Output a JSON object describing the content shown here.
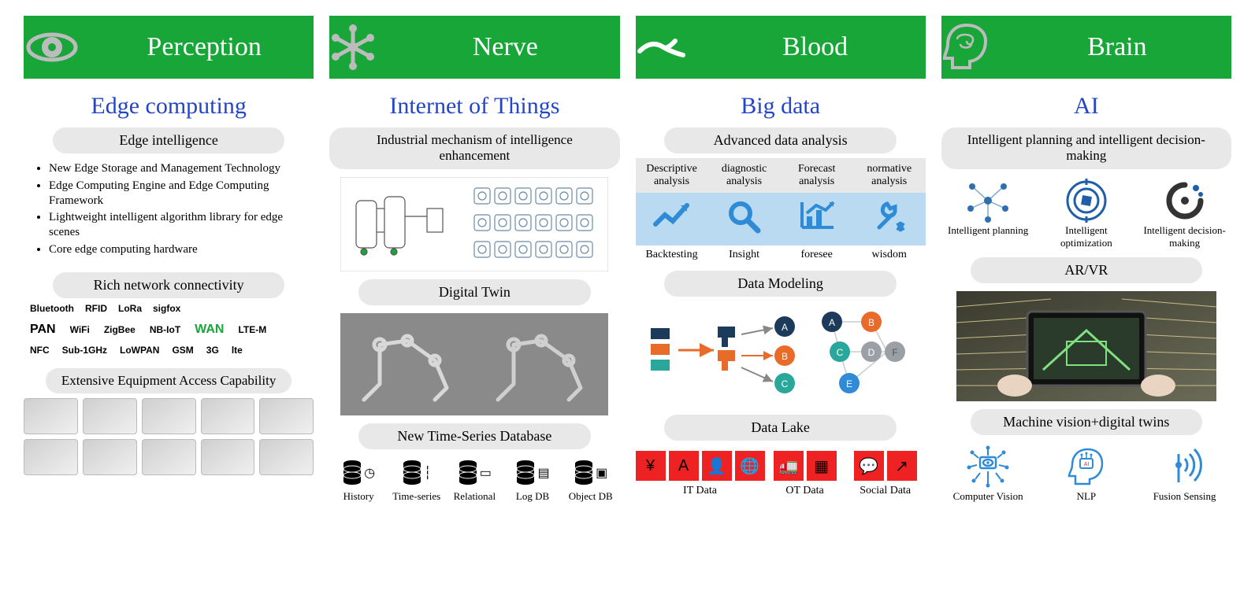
{
  "colors": {
    "header_bg": "#18a638",
    "header_icon": "#bcbcbc",
    "subtitle": "#2246c7",
    "pill_bg": "#e8e8e8",
    "analysis_icon": "#2f8bd6",
    "analysis_icon_bg": "#b9daf0",
    "datalake_red": "#ee2222",
    "node_navy": "#1c3b5a",
    "node_orange": "#e86b2a",
    "node_teal": "#2aa79b",
    "node_gray": "#9aa0a6",
    "wan_green": "#18a638"
  },
  "columns": [
    {
      "header": "Perception",
      "subtitle": "Edge computing",
      "sections": [
        {
          "type": "pill",
          "text": "Edge intelligence"
        },
        {
          "type": "bullets",
          "items": [
            "New Edge Storage and Management Technology",
            "Edge Computing Engine and Edge Computing Framework",
            "Lightweight intelligent algorithm library for edge scenes",
            "Core edge computing hardware"
          ]
        },
        {
          "type": "pill",
          "text": "Rich network connectivity"
        },
        {
          "type": "network",
          "pan_label": "PAN",
          "wan_label": "WAN",
          "tags": [
            "Bluetooth",
            "RFID",
            "LoRa",
            "sigfox",
            "WiFi",
            "ZigBee",
            "NB-IoT",
            "LTE-M",
            "NFC",
            "Sub-1GHz",
            "LoWPAN",
            "GSM",
            "3G",
            "lte"
          ]
        },
        {
          "type": "pill",
          "text": "Extensive Equipment Access Capability",
          "cls": "small"
        },
        {
          "type": "equipment",
          "count": 10
        }
      ]
    },
    {
      "header": "Nerve",
      "subtitle": "Internet of Things",
      "sections": [
        {
          "type": "pill",
          "text": "Industrial mechanism of intelligence enhancement",
          "cls": "small"
        },
        {
          "type": "img",
          "kind": "industrial"
        },
        {
          "type": "pill",
          "text": "Digital Twin"
        },
        {
          "type": "img",
          "kind": "digitaltwin"
        },
        {
          "type": "pill",
          "text": "New Time-Series Database"
        },
        {
          "type": "db5",
          "items": [
            "History",
            "Time-series",
            "Relational",
            "Log DB",
            "Object DB"
          ]
        }
      ]
    },
    {
      "header": "Blood",
      "subtitle": "Big data",
      "sections": [
        {
          "type": "pill",
          "text": "Advanced data analysis"
        },
        {
          "type": "analysis",
          "items": [
            {
              "top": "Descriptive analysis",
              "bottom": "Backtesting",
              "icon": "trend"
            },
            {
              "top": "diagnostic analysis",
              "bottom": "Insight",
              "icon": "magnify"
            },
            {
              "top": "Forecast analysis",
              "bottom": "foresee",
              "icon": "chart"
            },
            {
              "top": "normative analysis",
              "bottom": "wisdom",
              "icon": "tools"
            }
          ]
        },
        {
          "type": "pill",
          "text": "Data Modeling"
        },
        {
          "type": "img",
          "kind": "datamodel"
        },
        {
          "type": "pill",
          "text": "Data Lake"
        },
        {
          "type": "datalake",
          "items": [
            "IT Data",
            "OT Data",
            "Social Data"
          ]
        }
      ]
    },
    {
      "header": "Brain",
      "subtitle": "AI",
      "sections": [
        {
          "type": "pill",
          "text": "Intelligent planning and intelligent decision-making",
          "cls": "small"
        },
        {
          "type": "tri",
          "items": [
            {
              "label": "Intelligent planning",
              "icon": "network"
            },
            {
              "label": "Intelligent optimization",
              "icon": "target"
            },
            {
              "label": "Intelligent decision-making",
              "icon": "question"
            }
          ]
        },
        {
          "type": "pill",
          "text": "AR/VR"
        },
        {
          "type": "img",
          "kind": "arvr"
        },
        {
          "type": "pill",
          "text": "Machine vision+digital twins"
        },
        {
          "type": "tri",
          "items": [
            {
              "label": "Computer Vision",
              "icon": "cveye"
            },
            {
              "label": "NLP",
              "icon": "nlp"
            },
            {
              "label": "Fusion Sensing",
              "icon": "signal"
            }
          ]
        }
      ]
    }
  ]
}
